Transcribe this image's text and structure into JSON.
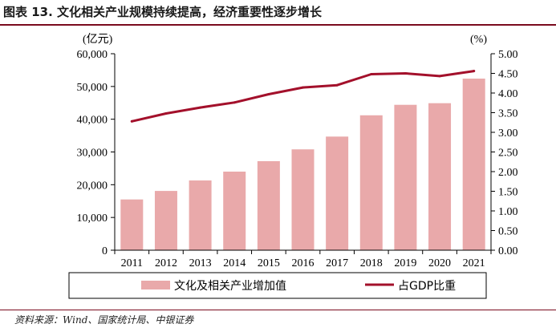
{
  "title": "图表 13.  文化相关产业规模持续提高，经济重要性逐步增长",
  "source": "资料来源：Wind、国家统计局、中银证券",
  "colors": {
    "bar": "#e9a9aa",
    "line": "#a3102b",
    "rule": "#7a0b1e"
  },
  "chart_data": {
    "type": "bar+line",
    "categories": [
      "2011",
      "2012",
      "2013",
      "2014",
      "2015",
      "2016",
      "2017",
      "2018",
      "2019",
      "2020",
      "2021"
    ],
    "series": [
      {
        "name": "文化及相关产业增加值",
        "type": "bar",
        "axis": "left",
        "values": [
          15500,
          18100,
          21300,
          24000,
          27200,
          30800,
          34700,
          41200,
          44400,
          44900,
          52400
        ]
      },
      {
        "name": "占GDP比重",
        "type": "line",
        "axis": "right",
        "values": [
          3.28,
          3.48,
          3.63,
          3.76,
          3.97,
          4.14,
          4.2,
          4.48,
          4.5,
          4.43,
          4.56
        ]
      }
    ],
    "left_axis": {
      "unit": "(亿元)",
      "min": 0,
      "max": 60000,
      "step": 10000,
      "tick_labels": [
        "0",
        "10,000",
        "20,000",
        "30,000",
        "40,000",
        "50,000",
        "60,000"
      ]
    },
    "right_axis": {
      "unit": "(%)",
      "min": 0,
      "max": 5,
      "step": 0.5,
      "tick_labels": [
        "0.00",
        "0.50",
        "1.00",
        "1.50",
        "2.00",
        "2.50",
        "3.00",
        "3.50",
        "4.00",
        "4.50",
        "5.00"
      ]
    },
    "legend": {
      "position": "bottom",
      "items": [
        "文化及相关产业增加值",
        "占GDP比重"
      ]
    }
  }
}
